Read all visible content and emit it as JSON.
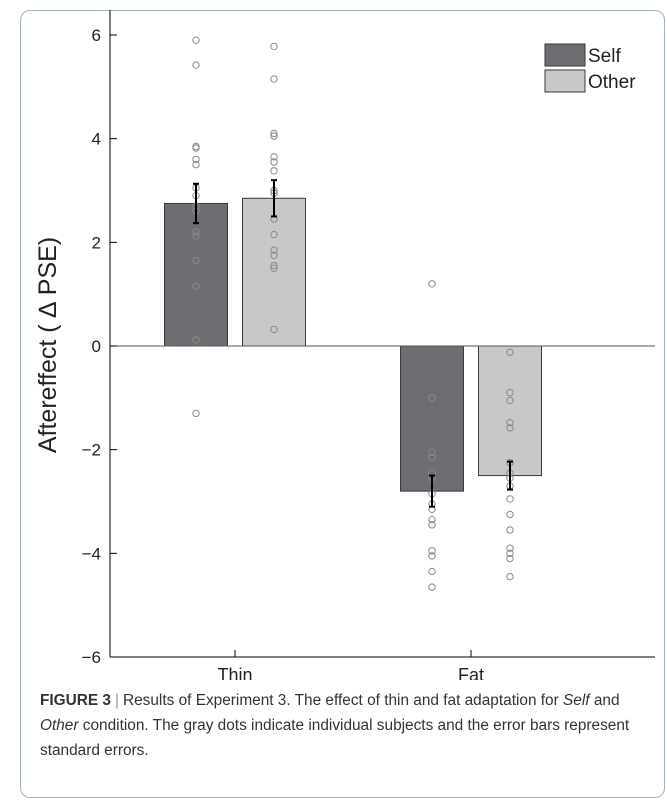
{
  "chart_data": {
    "type": "bar",
    "ylabel": "Aftereffect ( ∆ PSE)",
    "ylim": [
      -6,
      6
    ],
    "yticks": [
      -6,
      -4,
      -2,
      0,
      2,
      4,
      6
    ],
    "ytick_labels": [
      "−6",
      "−4",
      "−2",
      "0",
      "2",
      "4",
      "6"
    ],
    "categories": [
      "Thin",
      "Fat"
    ],
    "series": [
      {
        "name": "Self",
        "color": "#6d6e71",
        "values": [
          2.75,
          -2.8
        ],
        "errors": [
          0.38,
          0.3
        ],
        "points": [
          [
            5.9,
            5.42,
            3.85,
            3.82,
            3.6,
            3.5,
            3.05,
            2.9,
            2.7,
            2.6,
            2.2,
            2.12,
            1.65,
            1.15,
            0.12,
            -1.3
          ],
          [
            1.2,
            -1.0,
            -2.05,
            -2.15,
            -2.45,
            -2.55,
            -2.85,
            -3.05,
            -3.15,
            -3.35,
            -3.45,
            -3.95,
            -4.05,
            -4.35,
            -4.65
          ]
        ]
      },
      {
        "name": "Other",
        "color": "#c7c8ca",
        "values": [
          2.85,
          -2.5
        ],
        "errors": [
          0.35,
          0.27
        ],
        "points": [
          [
            5.78,
            5.15,
            4.1,
            4.05,
            3.65,
            3.55,
            3.38,
            3.0,
            2.95,
            2.45,
            2.15,
            1.85,
            1.75,
            1.55,
            1.5,
            0.32
          ],
          [
            -0.12,
            -0.9,
            -1.05,
            -1.48,
            -1.58,
            -2.25,
            -2.45,
            -2.55,
            -2.7,
            -2.95,
            -3.25,
            -3.55,
            -3.9,
            -4.0,
            -4.1,
            -4.45
          ]
        ]
      }
    ],
    "grid": false,
    "legend_position": "top-right"
  },
  "caption": {
    "label": "FIGURE 3",
    "before_self": "Results of Experiment 3. The effect of thin and fat adaptation for",
    "self": "Self",
    "and": "and",
    "other": "Other",
    "after_other": "condition. The gray dots indicate individual subjects and the error bars represent standard errors."
  }
}
